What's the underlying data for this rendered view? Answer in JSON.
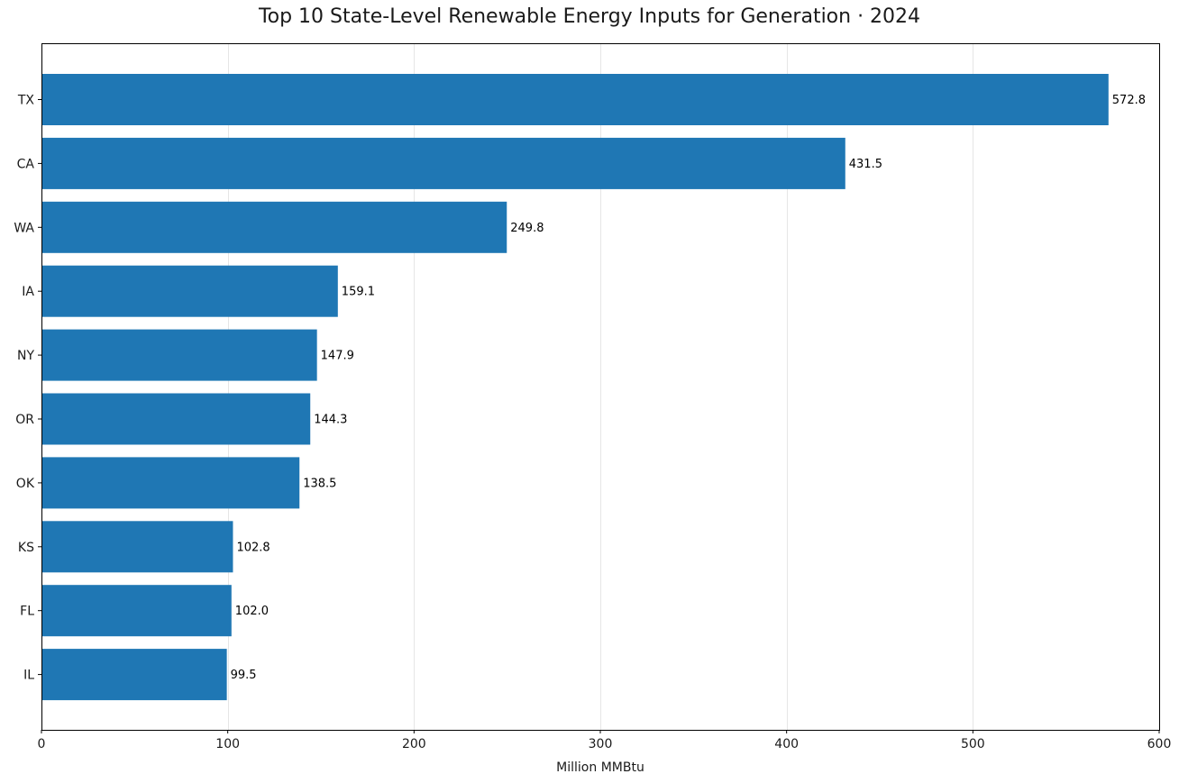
{
  "chart_data": {
    "type": "bar",
    "orientation": "horizontal",
    "title": "Top 10 State-Level Renewable Energy Inputs for Generation · 2024",
    "xlabel": "Million MMBtu",
    "ylabel": "",
    "categories": [
      "TX",
      "CA",
      "WA",
      "IA",
      "NY",
      "OR",
      "OK",
      "KS",
      "FL",
      "IL"
    ],
    "values": [
      572.8,
      431.5,
      249.8,
      159.1,
      147.9,
      144.3,
      138.5,
      102.8,
      102.0,
      99.5
    ],
    "value_labels": [
      "572.8",
      "431.5",
      "249.8",
      "159.1",
      "147.9",
      "144.3",
      "138.5",
      "102.8",
      "102.0",
      "99.5"
    ],
    "xlim": [
      0,
      600
    ],
    "xticks": [
      0,
      100,
      200,
      300,
      400,
      500,
      600
    ],
    "xtick_labels": [
      "0",
      "100",
      "200",
      "300",
      "400",
      "500",
      "600"
    ],
    "grid": "vertical",
    "bar_color": "#1f77b4",
    "grid_color": "#e6e6e6"
  }
}
